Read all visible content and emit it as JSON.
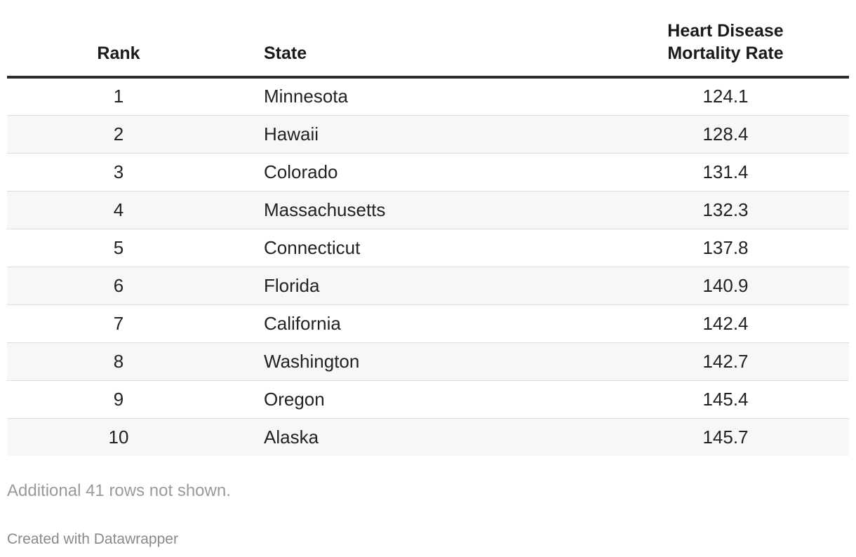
{
  "chart_data": {
    "type": "table",
    "columns": [
      "Rank",
      "State",
      "Heart Disease Mortality Rate"
    ],
    "rows": [
      {
        "rank": "1",
        "state": "Minnesota",
        "rate": "124.1"
      },
      {
        "rank": "2",
        "state": "Hawaii",
        "rate": "128.4"
      },
      {
        "rank": "3",
        "state": "Colorado",
        "rate": "131.4"
      },
      {
        "rank": "4",
        "state": "Massachusetts",
        "rate": "132.3"
      },
      {
        "rank": "5",
        "state": "Connecticut",
        "rate": "137.8"
      },
      {
        "rank": "6",
        "state": "Florida",
        "rate": "140.9"
      },
      {
        "rank": "7",
        "state": "California",
        "rate": "142.4"
      },
      {
        "rank": "8",
        "state": "Washington",
        "rate": "142.7"
      },
      {
        "rank": "9",
        "state": "Oregon",
        "rate": "145.4"
      },
      {
        "rank": "10",
        "state": "Alaska",
        "rate": "145.7"
      }
    ],
    "rate_header_lines": [
      "Heart Disease",
      "Mortality Rate"
    ]
  },
  "table_note": "Additional 41 rows not shown.",
  "footer": {
    "credit": "Created with Datawrapper"
  },
  "colors": {
    "header_rule": "#2c2c2c",
    "row_alt": "#f7f7f7",
    "note_text": "#9a9a9a"
  }
}
